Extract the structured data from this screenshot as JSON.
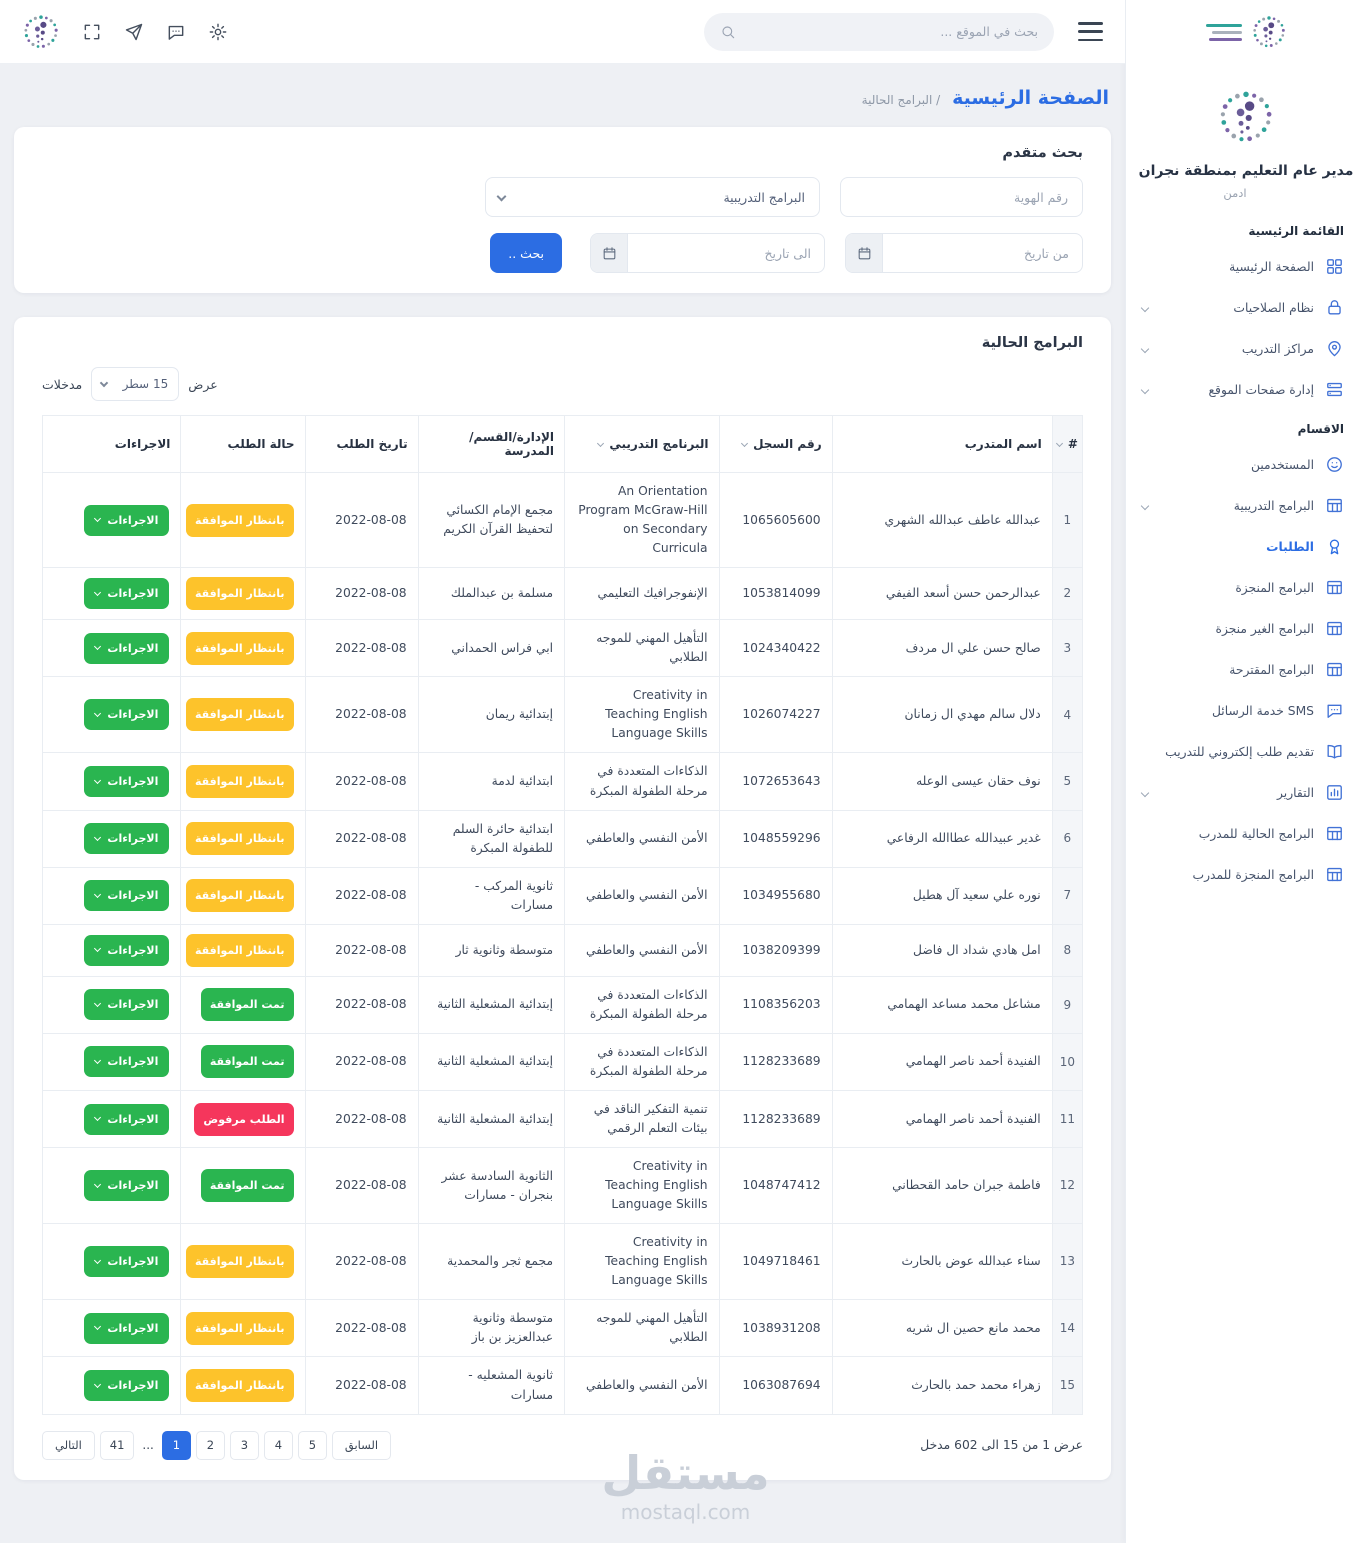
{
  "colors": {
    "accent": "#2c6de3",
    "pending": "#fdc32b",
    "approved": "#2ab550",
    "rejected": "#f5365c"
  },
  "topbar": {
    "search_placeholder": "بحث في الموقع ..."
  },
  "sidebar": {
    "org_title": "مدير عام التعليم بمنطقة نجران",
    "role": "ادمن",
    "sections": [
      {
        "label": "القائمة الرئيسية",
        "items": [
          {
            "id": "home",
            "label": "الصفحة الرئيسية",
            "icon": "grid",
            "chevron": false,
            "active": false
          },
          {
            "id": "permissions",
            "label": "نظام الصلاحيات",
            "icon": "lock",
            "chevron": true,
            "active": false
          },
          {
            "id": "training-centers",
            "label": "مراكز التدريب",
            "icon": "pin",
            "chevron": true,
            "active": false
          },
          {
            "id": "site-pages",
            "label": "إدارة صفحات الموقع",
            "icon": "pages",
            "chevron": true,
            "active": false
          }
        ]
      },
      {
        "label": "الاقس­ام",
        "items": [
          {
            "id": "users",
            "label": "المستخدمين",
            "icon": "smiley",
            "chevron": false,
            "active": false
          },
          {
            "id": "training-programs",
            "label": "البرامج التدريبية",
            "icon": "table",
            "chevron": true,
            "active": false
          },
          {
            "id": "requests",
            "label": "الطلبات",
            "icon": "award",
            "chevron": false,
            "active": true
          },
          {
            "id": "completed-programs",
            "label": "البرامج المنجزة",
            "icon": "table",
            "chevron": false,
            "active": false
          },
          {
            "id": "incomplete-programs",
            "label": "البرامج الغير منجزة",
            "icon": "table",
            "chevron": false,
            "active": false
          },
          {
            "id": "suggested-programs",
            "label": "البرامج المقترحة",
            "icon": "table",
            "chevron": false,
            "active": false
          },
          {
            "id": "sms-service",
            "label": "SMS خدمة الرسائل",
            "icon": "chat",
            "chevron": false,
            "active": false
          },
          {
            "id": "online-training-request",
            "label": "تقديم طلب إلكتروني للتدريب",
            "icon": "book",
            "chevron": false,
            "active": false
          },
          {
            "id": "reports",
            "label": "التقارير",
            "icon": "chart",
            "chevron": true,
            "active": false
          },
          {
            "id": "trainer-current-programs",
            "label": "البرامج الحالية للمدرب",
            "icon": "table",
            "chevron": false,
            "active": false
          },
          {
            "id": "trainer-completed-programs",
            "label": "البرامج المنجزة للمدرب",
            "icon": "table",
            "chevron": false,
            "active": false
          }
        ]
      }
    ]
  },
  "breadcrumb": {
    "title": "الصفحة الرئيسية",
    "crumb": "/ البرامج الحالية"
  },
  "search_card": {
    "title": "بحث متقدم",
    "id_placeholder": "رقم الهوية",
    "program_select_value": "البرامج التدريبية",
    "from_date_placeholder": "من تاريخ",
    "to_date_placeholder": "الى تاريخ",
    "search_button": "بحث .."
  },
  "table_card": {
    "title": "البرامج الحالية",
    "length": {
      "before": "عرض",
      "value": "15 سطر",
      "after": "مدخلات"
    },
    "columns": [
      {
        "label": "#",
        "sort": true
      },
      {
        "label": "اسم المتدرب",
        "sort": false
      },
      {
        "label": "رقم السجل",
        "sort": true
      },
      {
        "label": "البرنامج التدريبي",
        "sort": true
      },
      {
        "label": "الإدارة/القسم/المدرسة",
        "sort": false
      },
      {
        "label": "تاريخ الطلب",
        "sort": false
      },
      {
        "label": "حالة الطلب",
        "sort": false
      },
      {
        "label": "الاجراءات",
        "sort": false
      }
    ],
    "action_label": "الاجراءات",
    "rows": [
      {
        "n": "1",
        "name": "عبدالله عاطف عبدالله الشهري",
        "record": "1065605600",
        "program": "An Orientation Program McGraw-Hill on Secondary Curricula",
        "school": "مجمع الإمام الكسائي لتحفيظ القرآن الكريم",
        "date": "2022-08-08",
        "status": "بانتظار الموافقة",
        "status_type": "pending"
      },
      {
        "n": "2",
        "name": "عبدالرحمن حسن أسعد الفيفي",
        "record": "1053814099",
        "program": "الإنفوجرافيك التعليمي",
        "school": "مسلمة بن عبدالملك",
        "date": "2022-08-08",
        "status": "بانتظار الموافقة",
        "status_type": "pending"
      },
      {
        "n": "3",
        "name": "صالح حسن علي ال مردف",
        "record": "1024340422",
        "program": "التأهيل المهني للموجه الطلابي",
        "school": "ابي فراس الحمداني",
        "date": "2022-08-08",
        "status": "بانتظار الموافقة",
        "status_type": "pending"
      },
      {
        "n": "4",
        "name": "دلال سالم مهدي ال زمانان",
        "record": "1026074227",
        "program": "Creativity in Teaching English Language Skills",
        "school": "إبتدائية ريمان",
        "date": "2022-08-08",
        "status": "بانتظار الموافقة",
        "status_type": "pending"
      },
      {
        "n": "5",
        "name": "نوف حقان عيسى الوعله",
        "record": "1072653643",
        "program": "الذكاءات المتعددة في مرحلة الطفولة المبكرة",
        "school": "ابتدائية لدمة",
        "date": "2022-08-08",
        "status": "بانتظار الموافقة",
        "status_type": "pending"
      },
      {
        "n": "6",
        "name": "غدير عبيدالله عطاالله الرفاعي",
        "record": "1048559296",
        "program": "الأمن النفسي والعاطفي",
        "school": "ابتدائية حائرة السلم للطفولة المبكرة",
        "date": "2022-08-08",
        "status": "بانتظار الموافقة",
        "status_type": "pending"
      },
      {
        "n": "7",
        "name": "نوره علي سعيد آل هطيل",
        "record": "1034955680",
        "program": "الأمن النفسي والعاطفي",
        "school": "ثانوية المركب - مسارات",
        "date": "2022-08-08",
        "status": "بانتظار الموافقة",
        "status_type": "pending"
      },
      {
        "n": "8",
        "name": "امل هادي شداد ال فاضل",
        "record": "1038209399",
        "program": "الأمن النفسي والعاطفي",
        "school": "متوسطة وثانوية ثار",
        "date": "2022-08-08",
        "status": "بانتظار الموافقة",
        "status_type": "pending"
      },
      {
        "n": "9",
        "name": "مشاعل محمد مساعد الهمامي",
        "record": "1108356203",
        "program": "الذكاءات المتعددة في مرحلة الطفولة المبكرة",
        "school": "إبتدائية المشعلية الثانية",
        "date": "2022-08-08",
        "status": "تمت الموافقة",
        "status_type": "approved"
      },
      {
        "n": "10",
        "name": "الفنيدة أحمد ناصر الهمامي",
        "record": "1128233689",
        "program": "الذكاءات المتعددة في مرحلة الطفولة المبكرة",
        "school": "إبتدائية المشعلية الثانية",
        "date": "2022-08-08",
        "status": "تمت الموافقة",
        "status_type": "approved"
      },
      {
        "n": "11",
        "name": "الفنيدة أحمد ناصر الهمامي",
        "record": "1128233689",
        "program": "تنمية التفكير الناقد في بيئات التعلم الرقمي",
        "school": "إبتدائية المشعلية الثانية",
        "date": "2022-08-08",
        "status": "الطلب مرفوض",
        "status_type": "rejected"
      },
      {
        "n": "12",
        "name": "فاطمة جبران حامد القحطاني",
        "record": "1048747412",
        "program": "Creativity in Teaching English Language Skills",
        "school": "الثانوية السادسة عشر بنجران - مسارات",
        "date": "2022-08-08",
        "status": "تمت الموافقة",
        "status_type": "approved"
      },
      {
        "n": "13",
        "name": "سناء عبدالله عوض بالحارث",
        "record": "1049718461",
        "program": "Creativity in Teaching English Language Skills",
        "school": "مجمع ثجر والمحمدية",
        "date": "2022-08-08",
        "status": "بانتظار الموافقة",
        "status_type": "pending"
      },
      {
        "n": "14",
        "name": "محمد مانع حصين ال شريه",
        "record": "1038931208",
        "program": "التأهيل المهني للموجه الطلابي",
        "school": "متوسطة وثانوية عبدالعزيز بن باز",
        "date": "2022-08-08",
        "status": "بانتظار الموافقة",
        "status_type": "pending"
      },
      {
        "n": "15",
        "name": "زهراء محمد حمد بالحارث",
        "record": "1063087694",
        "program": "الأمن النفسي والعاطفي",
        "school": "ثانوية المشعليه - مسارات",
        "date": "2022-08-08",
        "status": "بانتظار الموافقة",
        "status_type": "pending"
      }
    ],
    "footer": {
      "info": "عرض 1 من 15 الى 602 مدخل",
      "pagination": {
        "prev": "السابق",
        "next": "التالي",
        "pages": [
          "1",
          "2",
          "3",
          "4",
          "5"
        ],
        "ellipsis": "...",
        "last": "41",
        "active": "1"
      }
    }
  },
  "watermark": {
    "title": "مستقل",
    "domain": "mostaql.com"
  }
}
